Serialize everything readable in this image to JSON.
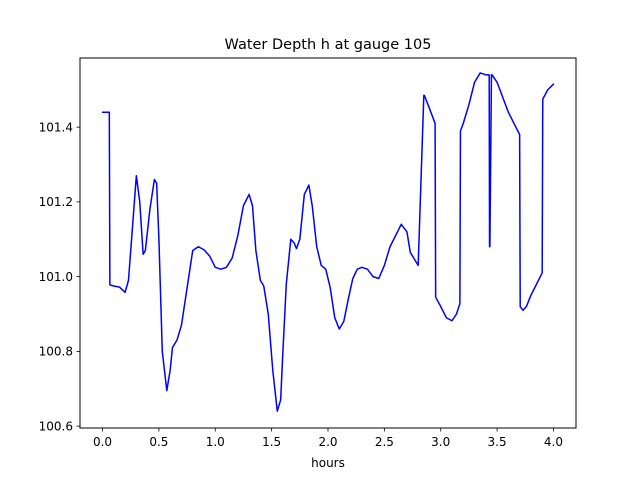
{
  "chart_data": {
    "type": "line",
    "title": "Water Depth h at gauge 105",
    "xlabel": "hours",
    "ylabel": "",
    "xlim": [
      -0.2,
      4.2
    ],
    "ylim": [
      100.595,
      101.585
    ],
    "xticks": [
      0.0,
      0.5,
      1.0,
      1.5,
      2.0,
      2.5,
      3.0,
      3.5,
      4.0
    ],
    "xtick_labels": [
      "0.0",
      "0.5",
      "1.0",
      "1.5",
      "2.0",
      "2.5",
      "3.0",
      "3.5",
      "4.0"
    ],
    "yticks": [
      100.6,
      100.8,
      101.0,
      101.2,
      101.4
    ],
    "ytick_labels": [
      "100.6",
      "100.8",
      "101.0",
      "101.2",
      "101.4"
    ],
    "grid": false,
    "series": [
      {
        "color": "#0000ff",
        "x": [
          0.0,
          0.06,
          0.065,
          0.1,
          0.15,
          0.2,
          0.23,
          0.27,
          0.3,
          0.33,
          0.36,
          0.38,
          0.42,
          0.46,
          0.48,
          0.5,
          0.53,
          0.57,
          0.6,
          0.62,
          0.66,
          0.7,
          0.75,
          0.8,
          0.85,
          0.9,
          0.95,
          1.0,
          1.05,
          1.1,
          1.15,
          1.2,
          1.25,
          1.3,
          1.33,
          1.36,
          1.4,
          1.43,
          1.47,
          1.51,
          1.55,
          1.58,
          1.6,
          1.63,
          1.67,
          1.7,
          1.72,
          1.75,
          1.79,
          1.83,
          1.86,
          1.9,
          1.94,
          1.98,
          2.02,
          2.06,
          2.1,
          2.14,
          2.18,
          2.22,
          2.26,
          2.3,
          2.35,
          2.4,
          2.45,
          2.5,
          2.55,
          2.6,
          2.65,
          2.7,
          2.73,
          2.76,
          2.8,
          2.85,
          2.855,
          2.9,
          2.95,
          2.955,
          3.0,
          3.05,
          3.1,
          3.14,
          3.17,
          3.175,
          3.2,
          3.25,
          3.3,
          3.35,
          3.4,
          3.43,
          3.433,
          3.436,
          3.45,
          3.455,
          3.5,
          3.55,
          3.6,
          3.65,
          3.7,
          3.705,
          3.73,
          3.76,
          3.8,
          3.85,
          3.9,
          3.905,
          3.95,
          4.0
        ],
        "y": [
          101.44,
          101.44,
          100.978,
          100.975,
          100.972,
          100.958,
          100.99,
          101.15,
          101.27,
          101.2,
          101.06,
          101.07,
          101.18,
          101.26,
          101.25,
          101.1,
          100.8,
          100.695,
          100.75,
          100.81,
          100.83,
          100.87,
          100.97,
          101.07,
          101.08,
          101.072,
          101.055,
          101.025,
          101.02,
          101.025,
          101.05,
          101.11,
          101.19,
          101.22,
          101.19,
          101.07,
          100.99,
          100.975,
          100.9,
          100.75,
          100.64,
          100.67,
          100.8,
          100.98,
          101.1,
          101.09,
          101.075,
          101.1,
          101.22,
          101.245,
          101.19,
          101.08,
          101.03,
          101.02,
          100.97,
          100.89,
          100.86,
          100.88,
          100.94,
          100.995,
          101.02,
          101.025,
          101.02,
          101.0,
          100.995,
          101.03,
          101.08,
          101.11,
          101.14,
          101.12,
          101.065,
          101.05,
          101.03,
          101.485,
          101.485,
          101.45,
          101.41,
          100.945,
          100.92,
          100.89,
          100.882,
          100.9,
          100.928,
          101.39,
          101.41,
          101.46,
          101.52,
          101.545,
          101.54,
          101.54,
          101.08,
          101.08,
          101.54,
          101.54,
          101.52,
          101.48,
          101.44,
          101.41,
          101.38,
          100.92,
          100.91,
          100.92,
          100.95,
          100.98,
          101.01,
          101.475,
          101.5,
          101.515
        ]
      }
    ]
  }
}
